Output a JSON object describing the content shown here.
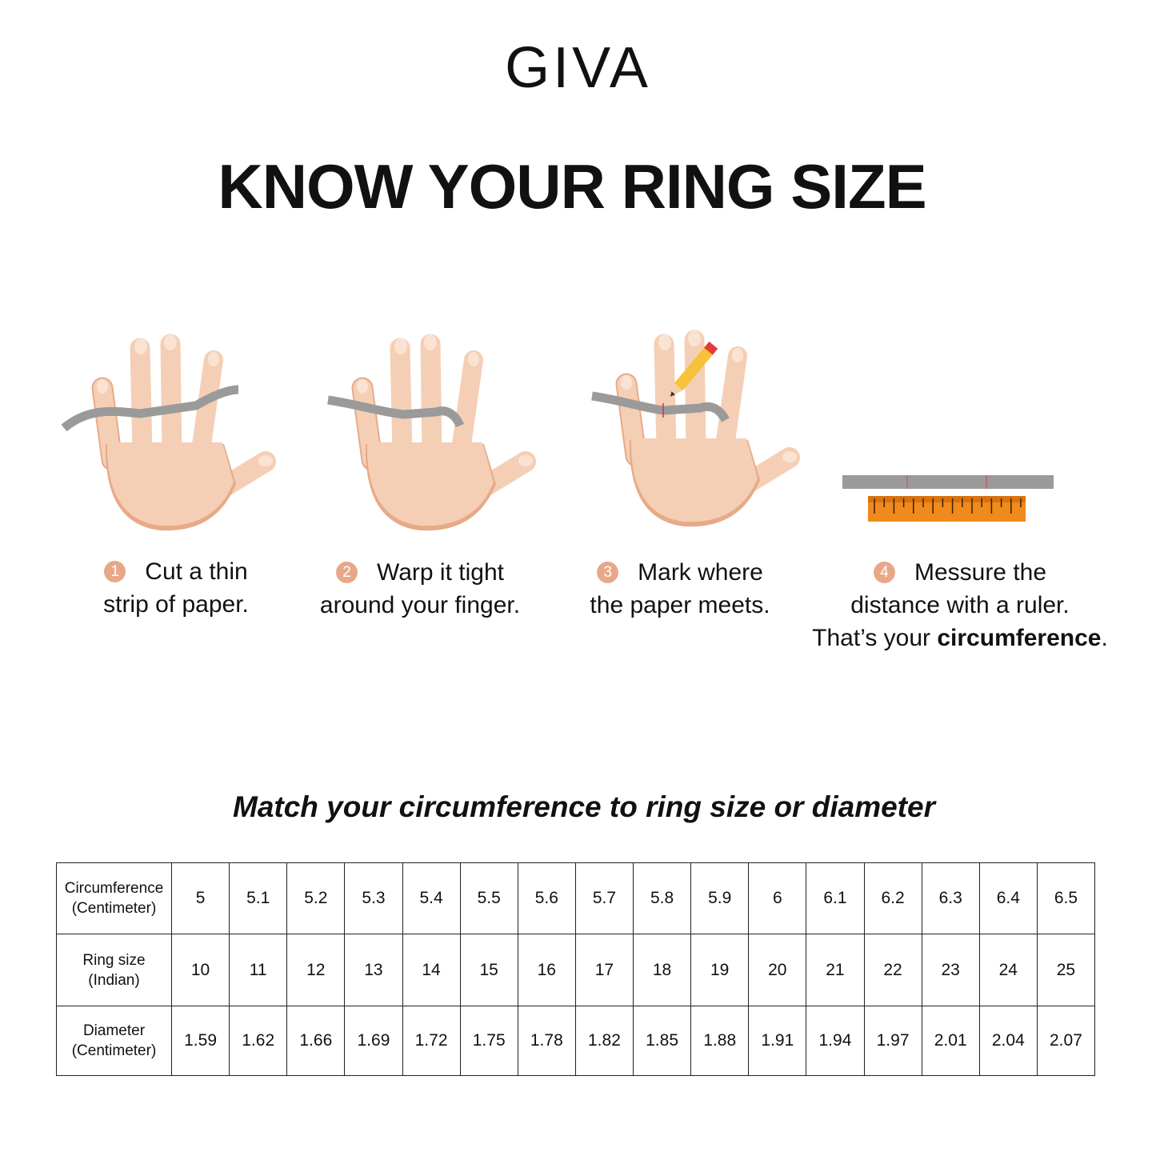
{
  "brand": "GIVA",
  "title": "KNOW YOUR RING SIZE",
  "colors": {
    "skin": "#f4cfb5",
    "skin_shadow": "#e7aa88",
    "paper": "#9a9a9a",
    "ruler": "#f08a1c",
    "step_badge": "#e8a888"
  },
  "steps": [
    {
      "num": "1",
      "line1": "Cut a thin",
      "line2": "strip of paper."
    },
    {
      "num": "2",
      "line1": "Warp it tight",
      "line2": "around your finger."
    },
    {
      "num": "3",
      "line1": "Mark where",
      "line2": "the paper meets."
    },
    {
      "num": "4",
      "line1": "Messure the",
      "line2": "distance with a ruler.",
      "line3_pre": "That’s your ",
      "line3_bold": "circumference",
      "line3_post": "."
    }
  ],
  "subtitle": "Match your circumference to ring size or diameter",
  "table": {
    "rows": [
      {
        "h1": "Circumference",
        "h2": "(Centimeter)",
        "values": [
          "5",
          "5.1",
          "5.2",
          "5.3",
          "5.4",
          "5.5",
          "5.6",
          "5.7",
          "5.8",
          "5.9",
          "6",
          "6.1",
          "6.2",
          "6.3",
          "6.4",
          "6.5"
        ]
      },
      {
        "h1": "Ring size",
        "h2": "(Indian)",
        "values": [
          "10",
          "11",
          "12",
          "13",
          "14",
          "15",
          "16",
          "17",
          "18",
          "19",
          "20",
          "21",
          "22",
          "23",
          "24",
          "25"
        ]
      },
      {
        "h1": "Diameter",
        "h2": "(Centimeter)",
        "values": [
          "1.59",
          "1.62",
          "1.66",
          "1.69",
          "1.72",
          "1.75",
          "1.78",
          "1.82",
          "1.85",
          "1.88",
          "1.91",
          "1.94",
          "1.97",
          "2.01",
          "2.04",
          "2.07"
        ]
      }
    ]
  }
}
